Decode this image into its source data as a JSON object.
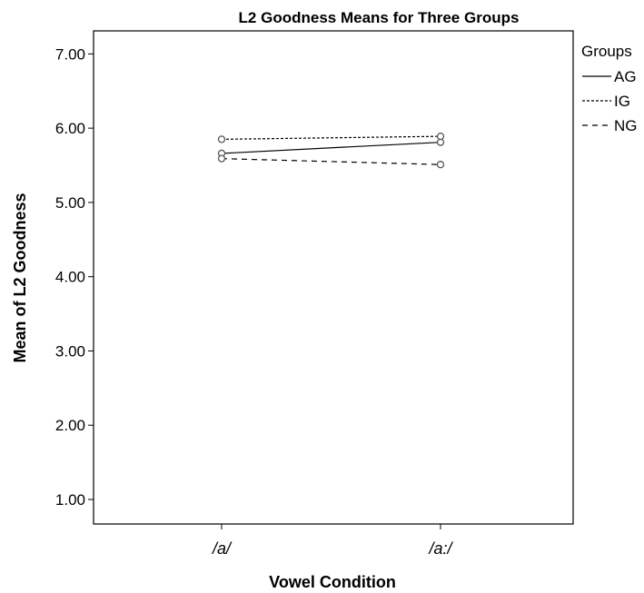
{
  "chart_data": {
    "type": "line",
    "title": "L2 Goodness Means for Three Groups",
    "xlabel": "Vowel Condition",
    "ylabel": "Mean of L2 Goodness",
    "categories": [
      "/a/",
      "/a:/"
    ],
    "yticks": [
      "1.00",
      "2.00",
      "3.00",
      "4.00",
      "5.00",
      "6.00",
      "7.00"
    ],
    "ylim": [
      0.67,
      7.31
    ],
    "grid": false,
    "legend": {
      "title": "Groups",
      "position": "right"
    },
    "series": [
      {
        "name": "AG",
        "values": [
          5.66,
          5.81
        ],
        "dash": "solid"
      },
      {
        "name": "IG",
        "values": [
          5.85,
          5.89
        ],
        "dash": "dotted"
      },
      {
        "name": "NG",
        "values": [
          5.59,
          5.51
        ],
        "dash": "dashed"
      }
    ],
    "colors": {
      "line": "#000000",
      "marker": "#555555",
      "frame": "#000000"
    }
  }
}
